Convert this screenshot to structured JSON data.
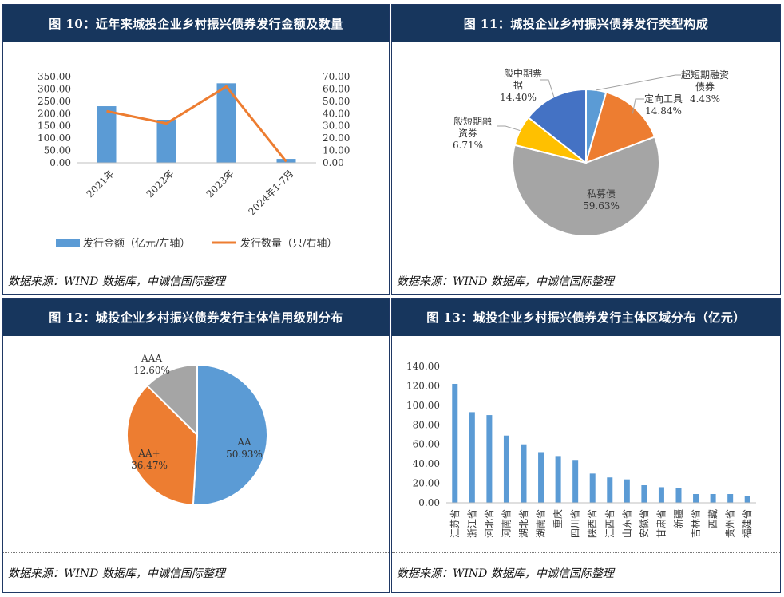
{
  "panels": {
    "p10": {
      "title": "图 10：近年来城投企业乡村振兴债券发行金额及数量",
      "source": "数据来源：WIND 数据库，中诚信国际整理"
    },
    "p11": {
      "title": "图 11：城投企业乡村振兴债券发行类型构成",
      "source": "数据来源：WIND 数据库，中诚信国际整理"
    },
    "p12": {
      "title": "图 12：城投企业乡村振兴债券发行主体信用级别分布",
      "source": "数据来源：WIND 数据库，中诚信国际整理"
    },
    "p13": {
      "title": "图 13：城投企业乡村振兴债券发行主体区域分布（亿元）",
      "source": "数据来源：WIND 数据库，中诚信国际整理"
    }
  },
  "colors": {
    "header": "#17365d",
    "blue": "#5b9bd5",
    "orange": "#ed7d31",
    "gray": "#a5a5a5",
    "yellow": "#ffc000",
    "darkblue": "#4472c4"
  },
  "chart_data": [
    {
      "type": "bar+line",
      "categories": [
        "2021年",
        "2022年",
        "2023年",
        "2024年1-7月"
      ],
      "series": [
        {
          "name": "发行金额（亿元/左轴）",
          "type": "bar",
          "axis": "left",
          "values": [
            230,
            175,
            323,
            16
          ]
        },
        {
          "name": "发行数量（只/右轴）",
          "type": "line",
          "axis": "right",
          "values": [
            42,
            32,
            62,
            1
          ]
        }
      ],
      "yleft": {
        "ticks": [
          "0.00",
          "50.00",
          "100.00",
          "150.00",
          "200.00",
          "250.00",
          "300.00",
          "350.00"
        ],
        "lim": [
          0,
          350
        ]
      },
      "yright": {
        "ticks": [
          "0.00",
          "10.00",
          "20.00",
          "30.00",
          "40.00",
          "50.00",
          "60.00",
          "70.00"
        ],
        "lim": [
          0,
          70
        ]
      },
      "legend": "bottom"
    },
    {
      "type": "pie",
      "slices": [
        {
          "label": "超短期融资债券",
          "pct_label": "4.43%",
          "value": 4.43,
          "color": "#5b9bd5"
        },
        {
          "label": "定向工具",
          "pct_label": "14.84%",
          "value": 14.84,
          "color": "#ed7d31"
        },
        {
          "label": "私募债",
          "pct_label": "59.63%",
          "value": 59.63,
          "color": "#a5a5a5"
        },
        {
          "label": "一般短期融资券",
          "pct_label": "6.71%",
          "value": 6.71,
          "color": "#ffc000"
        },
        {
          "label": "一般中期票据",
          "pct_label": "14.40%",
          "value": 14.4,
          "color": "#4472c4"
        }
      ]
    },
    {
      "type": "pie",
      "slices": [
        {
          "label": "AA",
          "pct_label": "50.93%",
          "value": 50.93,
          "color": "#5b9bd5"
        },
        {
          "label": "AA+",
          "pct_label": "36.47%",
          "value": 36.47,
          "color": "#ed7d31"
        },
        {
          "label": "AAA",
          "pct_label": "12.60%",
          "value": 12.6,
          "color": "#a5a5a5"
        }
      ]
    },
    {
      "type": "bar",
      "categories": [
        "江苏省",
        "浙江省",
        "河北省",
        "河南省",
        "湖北省",
        "湖南省",
        "重庆",
        "四川省",
        "陕西省",
        "江西省",
        "山东省",
        "安徽省",
        "甘肃省",
        "新疆",
        "吉林省",
        "西藏",
        "贵州省",
        "福建省"
      ],
      "values": [
        122,
        93,
        90,
        69,
        60,
        52,
        48,
        44,
        30,
        26,
        24,
        18,
        16,
        15,
        9,
        9,
        9,
        7
      ],
      "ticks": [
        "0.00",
        "20.00",
        "40.00",
        "60.00",
        "80.00",
        "100.00",
        "120.00",
        "140.00"
      ],
      "ylim": [
        0,
        140
      ]
    }
  ]
}
